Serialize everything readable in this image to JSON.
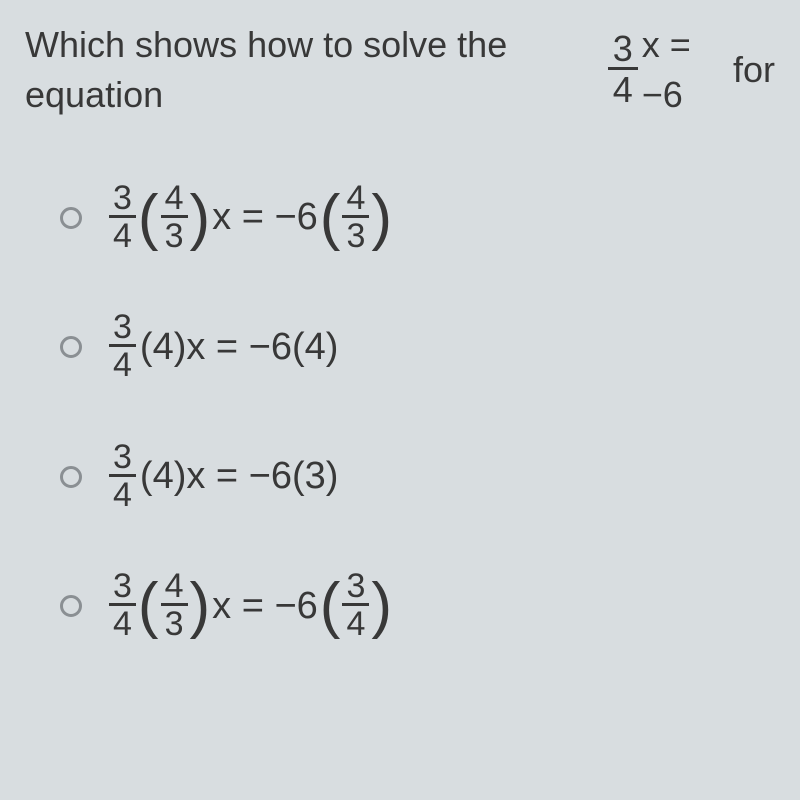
{
  "question": {
    "prefix": "Which shows how to solve the equation ",
    "eq_lhs_num": "3",
    "eq_lhs_den": "4",
    "eq_mid": "x = −6",
    "suffix": " for",
    "text_color": "#383838",
    "font_size": 36,
    "background_color": "#d8dde0"
  },
  "options": [
    {
      "id": "opt-a",
      "selected": false,
      "parts": {
        "f1_num": "3",
        "f1_den": "4",
        "paren1_open": "(",
        "f2_num": "4",
        "f2_den": "3",
        "paren1_close": ")",
        "mid": "x = −6",
        "paren2_open": "(",
        "f3_num": "4",
        "f3_den": "3",
        "paren2_close": ")"
      },
      "has_big_paren": true
    },
    {
      "id": "opt-b",
      "selected": false,
      "parts": {
        "f1_num": "3",
        "f1_den": "4",
        "plain": "(4)x = −6(4)"
      },
      "has_big_paren": false
    },
    {
      "id": "opt-c",
      "selected": false,
      "parts": {
        "f1_num": "3",
        "f1_den": "4",
        "plain": "(4)x = −6(3)"
      },
      "has_big_paren": false
    },
    {
      "id": "opt-d",
      "selected": false,
      "parts": {
        "f1_num": "3",
        "f1_den": "4",
        "paren1_open": "(",
        "f2_num": "4",
        "f2_den": "3",
        "paren1_close": ")",
        "mid": "x = −6",
        "paren2_open": "(",
        "f3_num": "3",
        "f3_den": "4",
        "paren2_close": ")"
      },
      "has_big_paren": true
    }
  ],
  "styling": {
    "radio_border_color": "#8a8f93",
    "radio_size": 22,
    "font_family": "Arial, sans-serif",
    "option_font_size": 38,
    "text_color": "#383838"
  }
}
